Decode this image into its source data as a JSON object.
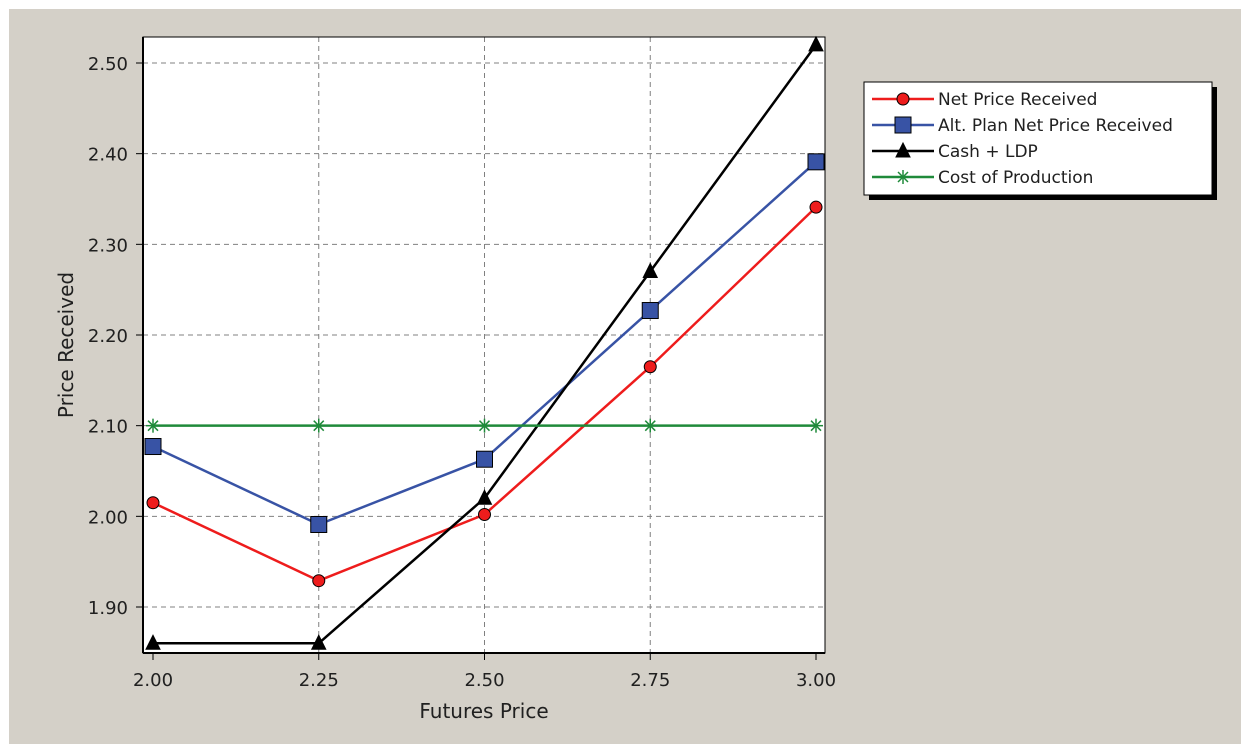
{
  "chart_data": {
    "type": "line",
    "xlabel": "Futures Price",
    "ylabel": "Price Received",
    "xlim": [
      2.0,
      3.0
    ],
    "ylim": [
      1.85,
      2.53
    ],
    "x": [
      2.0,
      2.25,
      2.5,
      2.75,
      3.0
    ],
    "x_ticks": [
      "2.00",
      "2.25",
      "2.50",
      "2.75",
      "3.00"
    ],
    "y_ticks": [
      "1.90",
      "2.00",
      "2.10",
      "2.20",
      "2.30",
      "2.40",
      "2.50"
    ],
    "grid": true,
    "legend_position": "top-right",
    "series": [
      {
        "name": "Net Price Received",
        "values": [
          2.015,
          1.929,
          2.002,
          2.165,
          2.341
        ],
        "color": "#ee1c1c",
        "marker": "circle"
      },
      {
        "name": "Alt. Plan Net Price Received",
        "values": [
          2.077,
          1.991,
          2.063,
          2.227,
          2.391
        ],
        "color": "#3853a5",
        "marker": "square"
      },
      {
        "name": "Cash + LDP",
        "values": [
          1.86,
          1.86,
          2.02,
          2.27,
          2.52
        ],
        "color": "#000000",
        "marker": "triangle"
      },
      {
        "name": "Cost of Production",
        "values": [
          2.1,
          2.1,
          2.1,
          2.1,
          2.1
        ],
        "color": "#1f8a3a",
        "marker": "star"
      }
    ]
  }
}
